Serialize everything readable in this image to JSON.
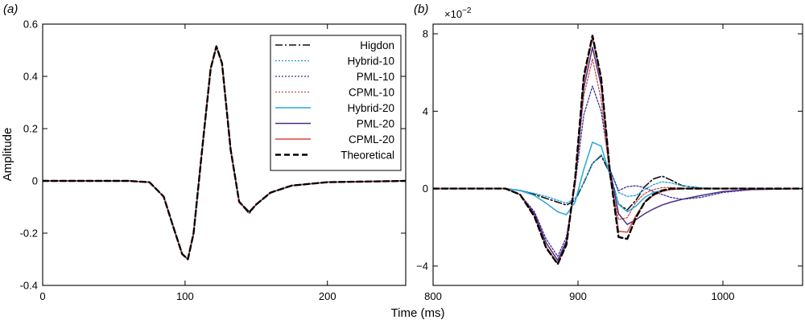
{
  "xlabel": "Time (ms)",
  "legend": {
    "entries": [
      {
        "name": "Higdon",
        "color": "#111111",
        "dash": "9,3,2,3",
        "width": 1.6
      },
      {
        "name": "Hybrid-10",
        "color": "#1f9ad6",
        "dash": "2,2",
        "width": 1.3
      },
      {
        "name": "PML-10",
        "color": "#3b2f9a",
        "dash": "2,2",
        "width": 1.3
      },
      {
        "name": "CPML-10",
        "color": "#c94a4a",
        "dash": "2,2",
        "width": 1.3
      },
      {
        "name": "Hybrid-20",
        "color": "#2aa7d8",
        "dash": "",
        "width": 1.5
      },
      {
        "name": "PML-20",
        "color": "#4b2f86",
        "dash": "",
        "width": 1.5
      },
      {
        "name": "CPML-20",
        "color": "#d9453d",
        "dash": "",
        "width": 1.5
      },
      {
        "name": "Theoretical",
        "color": "#000000",
        "dash": "7,4",
        "width": 2.4
      }
    ]
  },
  "chart_data": [
    {
      "panel": "(a)",
      "type": "line",
      "ylabel": "Amplitude",
      "xlim": [
        0,
        255
      ],
      "ylim": [
        -0.4,
        0.6
      ],
      "xticks": [
        0,
        100,
        200
      ],
      "yticks": [
        -0.4,
        -0.2,
        0,
        0.2,
        0.4,
        0.6
      ],
      "xtick_labels": [
        "0",
        "100",
        "200"
      ],
      "ytick_labels": [
        "-0.4",
        "-0.2",
        "0",
        "0.2",
        "0.4",
        "0.6"
      ],
      "x": [
        0,
        60,
        75,
        85,
        92,
        98,
        102,
        106,
        112,
        118,
        122,
        126,
        132,
        138,
        145,
        150,
        160,
        175,
        200,
        255
      ],
      "series": [
        {
          "name": "Higdon",
          "values": [
            0,
            0,
            -0.005,
            -0.06,
            -0.18,
            -0.28,
            -0.3,
            -0.2,
            0.12,
            0.43,
            0.515,
            0.45,
            0.12,
            -0.08,
            -0.125,
            -0.09,
            -0.045,
            -0.018,
            -0.005,
            0
          ]
        },
        {
          "name": "Hybrid-10",
          "values": [
            0,
            0,
            -0.005,
            -0.06,
            -0.18,
            -0.28,
            -0.3,
            -0.2,
            0.12,
            0.43,
            0.515,
            0.45,
            0.12,
            -0.08,
            -0.12,
            -0.09,
            -0.045,
            -0.018,
            -0.005,
            0
          ]
        },
        {
          "name": "PML-10",
          "values": [
            0,
            0,
            -0.005,
            -0.06,
            -0.18,
            -0.28,
            -0.3,
            -0.2,
            0.12,
            0.43,
            0.515,
            0.45,
            0.12,
            -0.08,
            -0.12,
            -0.09,
            -0.045,
            -0.018,
            -0.005,
            0
          ]
        },
        {
          "name": "CPML-10",
          "values": [
            0,
            0,
            -0.005,
            -0.06,
            -0.18,
            -0.28,
            -0.3,
            -0.2,
            0.12,
            0.43,
            0.515,
            0.45,
            0.12,
            -0.08,
            -0.12,
            -0.09,
            -0.045,
            -0.018,
            -0.005,
            0
          ]
        },
        {
          "name": "Hybrid-20",
          "values": [
            0,
            0,
            -0.005,
            -0.06,
            -0.18,
            -0.28,
            -0.3,
            -0.2,
            0.12,
            0.43,
            0.515,
            0.45,
            0.12,
            -0.08,
            -0.12,
            -0.09,
            -0.045,
            -0.018,
            -0.005,
            0
          ]
        },
        {
          "name": "PML-20",
          "values": [
            0,
            0,
            -0.005,
            -0.06,
            -0.18,
            -0.28,
            -0.3,
            -0.2,
            0.12,
            0.43,
            0.515,
            0.45,
            0.12,
            -0.08,
            -0.12,
            -0.09,
            -0.045,
            -0.018,
            -0.005,
            0
          ]
        },
        {
          "name": "CPML-20",
          "values": [
            0,
            0,
            -0.005,
            -0.06,
            -0.18,
            -0.28,
            -0.3,
            -0.2,
            0.12,
            0.43,
            0.515,
            0.45,
            0.12,
            -0.08,
            -0.12,
            -0.09,
            -0.045,
            -0.018,
            -0.005,
            0
          ]
        },
        {
          "name": "Theoretical",
          "values": [
            0,
            0,
            -0.005,
            -0.06,
            -0.18,
            -0.28,
            -0.3,
            -0.2,
            0.12,
            0.43,
            0.515,
            0.45,
            0.12,
            -0.08,
            -0.12,
            -0.09,
            -0.045,
            -0.018,
            -0.005,
            0
          ]
        }
      ],
      "legend_position": "top-right",
      "grid": false
    },
    {
      "panel": "(b)",
      "type": "line",
      "ylabel": "",
      "scale_label": "×10",
      "scale_exponent": "−2",
      "xlim": [
        800,
        1055
      ],
      "ylim": [
        -5,
        8.5
      ],
      "xticks": [
        800,
        900,
        1000
      ],
      "yticks": [
        -4,
        0,
        4,
        8
      ],
      "xtick_labels": [
        "800",
        "900",
        "1000"
      ],
      "ytick_labels": [
        "−4",
        "0",
        "4",
        "8"
      ],
      "x": [
        800,
        850,
        860,
        870,
        878,
        886,
        892,
        898,
        904,
        910,
        916,
        922,
        928,
        934,
        940,
        946,
        952,
        958,
        964,
        972,
        985,
        1000,
        1020,
        1055
      ],
      "series": [
        {
          "name": "Higdon",
          "values": [
            0,
            0,
            -0.1,
            -0.3,
            -0.5,
            -0.7,
            -0.85,
            -0.6,
            0.3,
            1.3,
            1.7,
            0.8,
            -0.8,
            -1.1,
            -0.6,
            0.1,
            0.5,
            0.65,
            0.45,
            0.15,
            0.02,
            0,
            0,
            0
          ]
        },
        {
          "name": "Hybrid-10",
          "values": [
            0,
            0,
            -0.08,
            -0.25,
            -0.4,
            -0.6,
            -0.75,
            -0.5,
            0.3,
            1.3,
            1.75,
            1.0,
            -0.2,
            -0.4,
            -0.35,
            -0.05,
            0.2,
            0.35,
            0.3,
            0.15,
            0.04,
            0,
            0,
            0
          ]
        },
        {
          "name": "PML-10",
          "values": [
            0,
            0,
            -0.3,
            -1.2,
            -2.6,
            -3.5,
            -2.5,
            0.2,
            3.8,
            5.3,
            4.0,
            1.0,
            -0.1,
            0.1,
            0.15,
            0.05,
            -0.15,
            -0.3,
            -0.45,
            -0.55,
            -0.45,
            -0.2,
            -0.05,
            0
          ]
        },
        {
          "name": "CPML-10",
          "values": [
            0,
            0,
            -0.3,
            -1.3,
            -2.8,
            -3.7,
            -2.8,
            0.3,
            4.8,
            6.7,
            4.6,
            0.6,
            -1.6,
            -1.5,
            -0.7,
            -0.25,
            -0.05,
            0.05,
            0.05,
            0.02,
            0,
            0,
            0,
            0
          ]
        },
        {
          "name": "Hybrid-20",
          "values": [
            0,
            0,
            -0.1,
            -0.35,
            -0.75,
            -1.2,
            -1.35,
            -0.7,
            1.0,
            2.4,
            2.2,
            0.7,
            -0.8,
            -1.2,
            -0.9,
            -0.45,
            -0.2,
            -0.1,
            -0.05,
            0,
            0,
            0,
            0,
            0
          ]
        },
        {
          "name": "PML-20",
          "values": [
            0,
            0,
            -0.3,
            -1.3,
            -2.8,
            -3.7,
            -2.7,
            0.3,
            5.2,
            7.3,
            5.3,
            1.0,
            -1.3,
            -1.85,
            -1.6,
            -1.3,
            -1.05,
            -0.85,
            -0.7,
            -0.55,
            -0.35,
            -0.15,
            -0.05,
            0
          ]
        },
        {
          "name": "CPML-20",
          "values": [
            0,
            0,
            -0.3,
            -1.4,
            -3.0,
            -3.85,
            -2.9,
            0.4,
            5.6,
            7.8,
            5.6,
            0.9,
            -2.2,
            -2.25,
            -1.4,
            -0.7,
            -0.35,
            -0.15,
            -0.05,
            0,
            0,
            0,
            0,
            0
          ]
        },
        {
          "name": "Theoretical",
          "values": [
            0,
            0,
            -0.3,
            -1.45,
            -3.05,
            -3.9,
            -2.9,
            0.5,
            5.8,
            7.9,
            5.7,
            0.9,
            -2.5,
            -2.6,
            -1.5,
            -0.7,
            -0.3,
            -0.1,
            0,
            0,
            0,
            0,
            0,
            0
          ]
        }
      ],
      "legend_position": "none",
      "grid": false
    }
  ]
}
